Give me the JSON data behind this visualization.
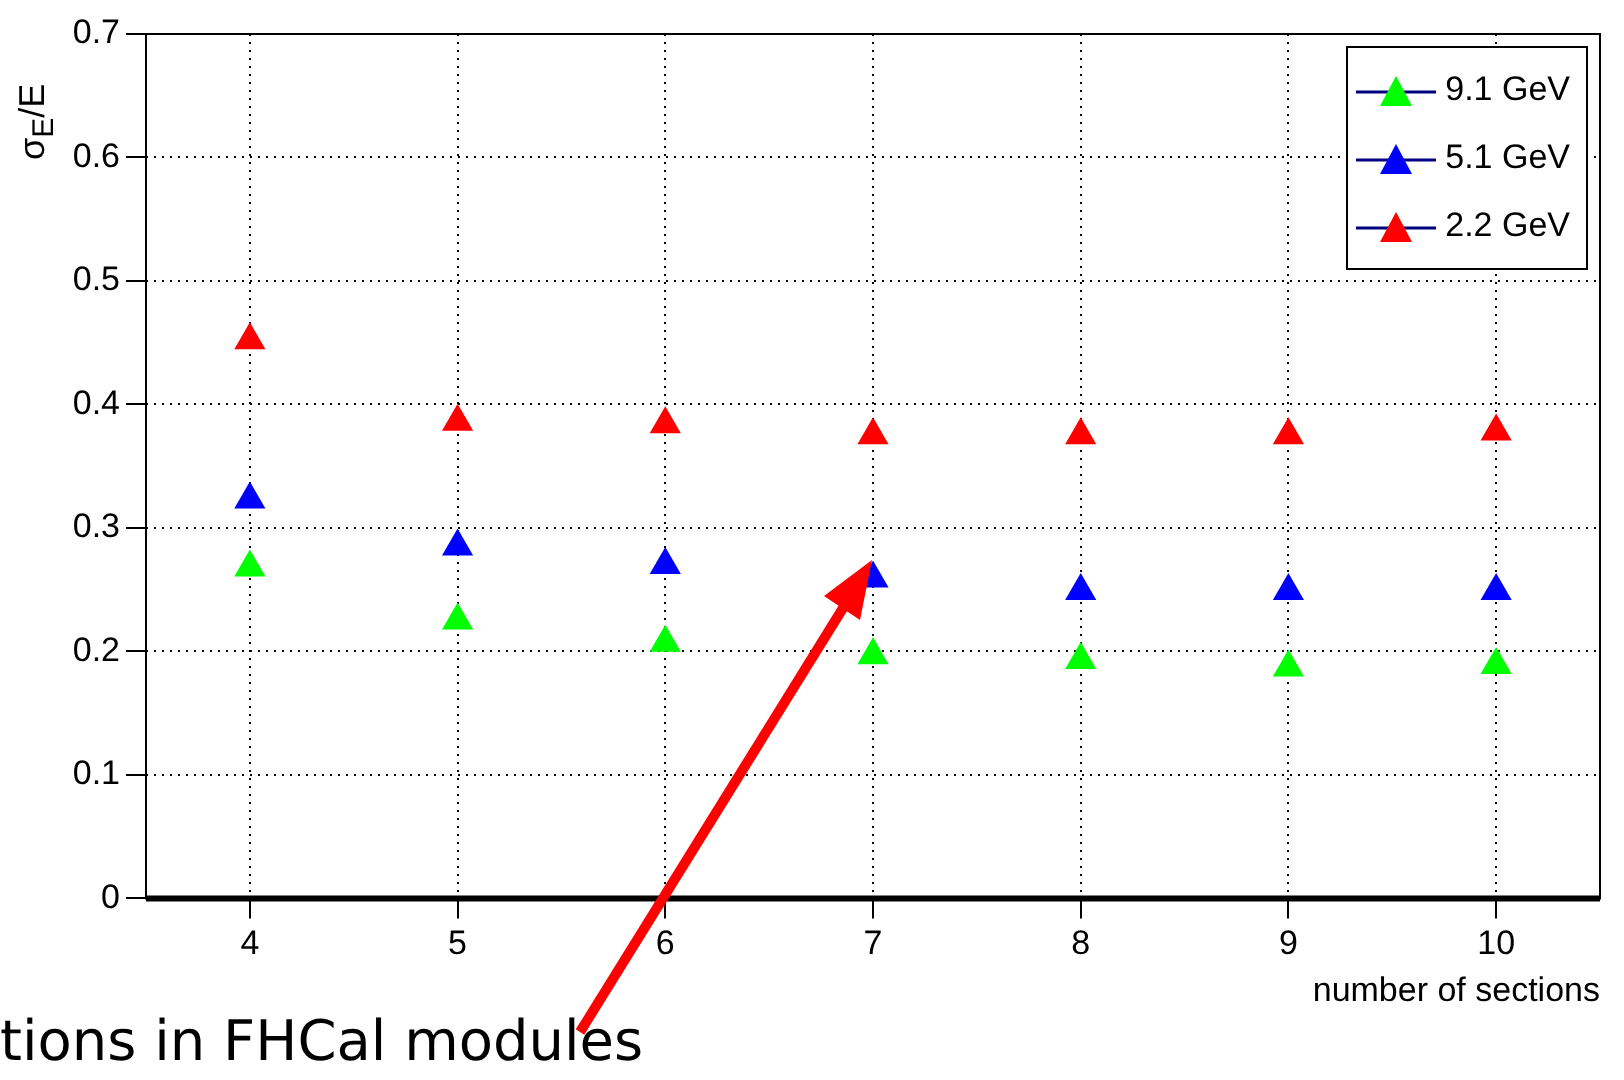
{
  "chart_data": {
    "type": "scatter",
    "xlabel": "number of sections",
    "ylabel": "σ$_{E}$/E",
    "x": [
      4,
      5,
      6,
      7,
      8,
      9,
      10
    ],
    "series": [
      {
        "name": "9.1 GeV",
        "color": "#00ff00",
        "values": [
          0.268,
          0.225,
          0.207,
          0.197,
          0.193,
          0.187,
          0.189
        ]
      },
      {
        "name": "5.1 GeV",
        "color": "#0000ff",
        "values": [
          0.323,
          0.285,
          0.27,
          0.259,
          0.249,
          0.249,
          0.249
        ]
      },
      {
        "name": "2.2 GeV",
        "color": "#ff0000",
        "values": [
          0.452,
          0.386,
          0.384,
          0.375,
          0.375,
          0.375,
          0.378
        ]
      }
    ],
    "xlim": [
      3.5,
      10.5
    ],
    "xticks": [
      4,
      5,
      6,
      7,
      8,
      9,
      10
    ],
    "ylim": [
      0,
      0.7
    ],
    "yticks": [
      0,
      0.1,
      0.2,
      0.3,
      0.4,
      0.5,
      0.6,
      0.7
    ],
    "grid": true,
    "legend": "top right",
    "marker": "triangle",
    "annotations": [
      "tions in FHCal modules"
    ]
  }
}
